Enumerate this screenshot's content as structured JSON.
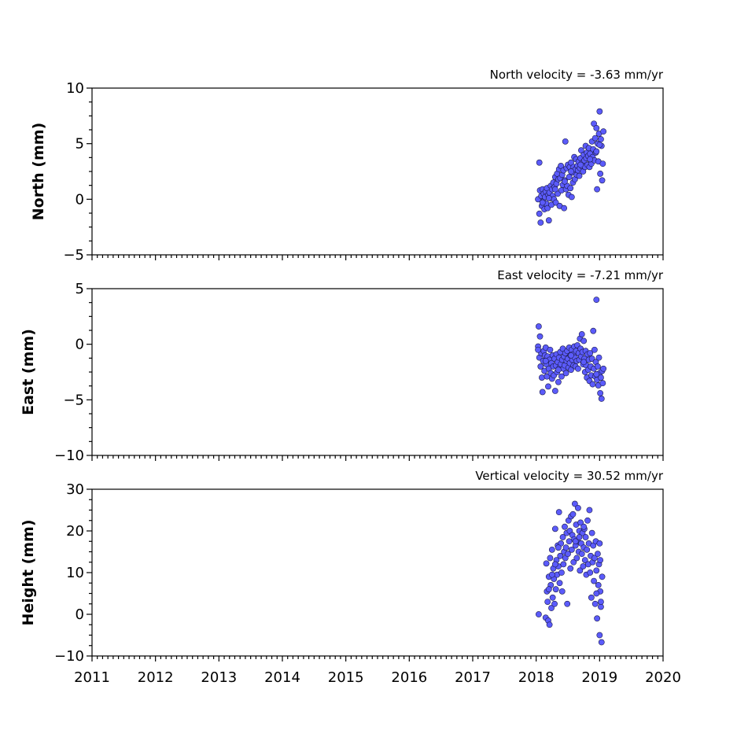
{
  "style": {
    "marker_color": "#5b5bfa",
    "marker_edge": "#1a1a4a"
  },
  "chart_data": [
    {
      "type": "scatter",
      "title": "North velocity = -3.63 mm/yr",
      "xlabel": "",
      "ylabel": "North (mm)",
      "xlim": [
        2011,
        2020
      ],
      "ylim": [
        -5,
        10
      ],
      "yticks": [
        -5,
        0,
        5,
        10
      ],
      "yticklabels": [
        "−5",
        "0",
        "5",
        "10"
      ],
      "x": [
        2018.03,
        2018.05,
        2018.06,
        2018.07,
        2018.08,
        2018.09,
        2018.1,
        2018.11,
        2018.12,
        2018.13,
        2018.14,
        2018.15,
        2018.16,
        2018.17,
        2018.18,
        2018.19,
        2018.2,
        2018.21,
        2018.22,
        2018.23,
        2018.24,
        2018.25,
        2018.26,
        2018.27,
        2018.28,
        2018.29,
        2018.3,
        2018.31,
        2018.32,
        2018.33,
        2018.34,
        2018.35,
        2018.36,
        2018.37,
        2018.38,
        2018.39,
        2018.4,
        2018.41,
        2018.42,
        2018.43,
        2018.44,
        2018.45,
        2018.46,
        2018.47,
        2018.48,
        2018.49,
        2018.5,
        2018.51,
        2018.52,
        2018.53,
        2018.54,
        2018.55,
        2018.56,
        2018.57,
        2018.58,
        2018.59,
        2018.6,
        2018.61,
        2018.62,
        2018.63,
        2018.64,
        2018.65,
        2018.66,
        2018.67,
        2018.68,
        2018.69,
        2018.7,
        2018.71,
        2018.72,
        2018.73,
        2018.74,
        2018.75,
        2018.76,
        2018.77,
        2018.78,
        2018.79,
        2018.8,
        2018.81,
        2018.82,
        2018.83,
        2018.84,
        2018.85,
        2018.86,
        2018.87,
        2018.88,
        2018.89,
        2018.9,
        2018.91,
        2018.92,
        2018.93,
        2018.94,
        2018.95,
        2018.96,
        2018.97,
        2018.98,
        2018.99,
        2019.0,
        2019.01,
        2019.02,
        2019.03,
        2019.04,
        2019.05,
        2019.06,
        2018.05,
        2018.1,
        2018.2,
        2018.3,
        2018.45,
        2018.55,
        2018.7,
        2018.85,
        2018.95,
        2019.0
      ],
      "y": [
        0.0,
        -1.3,
        0.8,
        -2.1,
        0.3,
        -0.6,
        0.9,
        -0.2,
        0.5,
        -0.9,
        0.2,
        0.7,
        -0.4,
        1.0,
        -0.8,
        0.4,
        -1.9,
        0.6,
        0.1,
        1.2,
        -0.5,
        0.9,
        0.3,
        1.5,
        0.0,
        1.1,
        2.0,
        -0.3,
        1.4,
        2.3,
        0.5,
        1.8,
        2.7,
        -0.6,
        1.9,
        3.0,
        0.8,
        2.2,
        1.3,
        2.6,
        -0.8,
        1.7,
        5.2,
        0.9,
        2.8,
        1.2,
        3.1,
        0.4,
        2.0,
        2.9,
        1.0,
        3.3,
        0.2,
        2.4,
        1.5,
        2.9,
        3.8,
        1.8,
        2.7,
        3.6,
        2.2,
        3.0,
        2.6,
        3.4,
        2.1,
        2.8,
        3.7,
        4.4,
        3.0,
        3.3,
        2.5,
        4.0,
        3.5,
        2.9,
        4.8,
        3.7,
        4.2,
        3.1,
        3.9,
        4.6,
        2.9,
        4.1,
        3.5,
        3.2,
        5.2,
        3.8,
        4.5,
        6.8,
        3.5,
        5.5,
        4.2,
        6.4,
        0.9,
        5.0,
        3.4,
        5.9,
        7.9,
        2.3,
        5.4,
        4.8,
        1.7,
        3.2,
        6.1,
        3.3,
        -0.3,
        0.1,
        0.9,
        1.6,
        2.5,
        3.1,
        3.6,
        4.3,
        4.9
      ],
      "annotation": "North velocity = -3.63 mm/yr"
    },
    {
      "type": "scatter",
      "title": "East velocity = -7.21 mm/yr",
      "xlabel": "",
      "ylabel": "East (mm)",
      "xlim": [
        2011,
        2020
      ],
      "ylim": [
        -10,
        5
      ],
      "yticks": [
        -10,
        -5,
        0,
        5
      ],
      "yticklabels": [
        "−10",
        "−5",
        "0",
        "5"
      ],
      "x": [
        2018.03,
        2018.04,
        2018.05,
        2018.06,
        2018.07,
        2018.08,
        2018.09,
        2018.1,
        2018.11,
        2018.12,
        2018.13,
        2018.14,
        2018.15,
        2018.16,
        2018.17,
        2018.18,
        2018.19,
        2018.2,
        2018.21,
        2018.22,
        2018.23,
        2018.24,
        2018.25,
        2018.26,
        2018.27,
        2018.28,
        2018.29,
        2018.3,
        2018.31,
        2018.32,
        2018.33,
        2018.34,
        2018.35,
        2018.36,
        2018.37,
        2018.38,
        2018.39,
        2018.4,
        2018.41,
        2018.42,
        2018.43,
        2018.44,
        2018.45,
        2018.46,
        2018.47,
        2018.48,
        2018.49,
        2018.5,
        2018.51,
        2018.52,
        2018.53,
        2018.54,
        2018.55,
        2018.56,
        2018.57,
        2018.58,
        2018.59,
        2018.6,
        2018.61,
        2018.62,
        2018.63,
        2018.64,
        2018.65,
        2018.66,
        2018.67,
        2018.68,
        2018.69,
        2018.7,
        2018.71,
        2018.72,
        2018.73,
        2018.74,
        2018.75,
        2018.76,
        2018.77,
        2018.78,
        2018.79,
        2018.8,
        2018.81,
        2018.82,
        2018.83,
        2018.84,
        2018.85,
        2018.86,
        2018.87,
        2018.88,
        2018.89,
        2018.9,
        2018.91,
        2018.92,
        2018.93,
        2018.94,
        2018.95,
        2018.96,
        2018.97,
        2018.98,
        2018.99,
        2019.0,
        2019.01,
        2019.02,
        2019.03,
        2019.04,
        2019.05,
        2019.06,
        2018.03,
        2018.15,
        2018.35,
        2018.55,
        2018.75,
        2018.95
      ],
      "y": [
        -0.2,
        1.6,
        -1.2,
        0.7,
        -2.0,
        -0.8,
        -3.0,
        -4.3,
        -1.5,
        -0.6,
        -2.4,
        -1.0,
        -0.3,
        -1.8,
        -2.9,
        -1.1,
        -3.8,
        -2.2,
        -1.4,
        -0.5,
        -2.6,
        -1.7,
        -3.1,
        -1.0,
        -2.0,
        -2.8,
        -1.3,
        -4.2,
        -1.9,
        -0.9,
        -2.5,
        -1.6,
        -3.4,
        -1.2,
        -2.1,
        -0.7,
        -1.8,
        -2.9,
        -1.4,
        -0.4,
        -2.2,
        -1.1,
        -1.9,
        -0.8,
        -2.6,
        -1.5,
        -0.6,
        -1.3,
        -2.1,
        -0.3,
        -1.7,
        -1.0,
        -2.3,
        -0.5,
        -1.4,
        -0.9,
        -1.9,
        -0.2,
        -1.2,
        -2.0,
        -0.6,
        -1.5,
        -0.1,
        -2.2,
        -0.8,
        -1.4,
        0.5,
        -0.4,
        -1.1,
        0.9,
        -0.7,
        -1.8,
        0.3,
        -1.3,
        -2.5,
        -0.6,
        -1.9,
        -3.0,
        -0.9,
        -2.3,
        -1.4,
        -3.3,
        -0.8,
        -2.0,
        -2.8,
        -1.3,
        -3.6,
        1.2,
        -2.2,
        -0.5,
        -2.9,
        -1.6,
        4.0,
        -3.2,
        -2.0,
        -3.7,
        -1.2,
        -2.6,
        -4.4,
        -3.0,
        -4.9,
        -2.4,
        -3.5,
        -2.2,
        -0.5,
        -1.5,
        -2.3,
        -1.0,
        -1.6,
        -2.7
      ]
    },
    {
      "type": "scatter",
      "title": "Vertical velocity = 30.52 mm/yr",
      "xlabel": "",
      "ylabel": "Height (mm)",
      "xlim": [
        2011,
        2020
      ],
      "ylim": [
        -10,
        30
      ],
      "yticks": [
        -10,
        0,
        10,
        20,
        30
      ],
      "yticklabels": [
        "−10",
        "0",
        "10",
        "20",
        "30"
      ],
      "xticks": [
        2011,
        2012,
        2013,
        2014,
        2015,
        2016,
        2017,
        2018,
        2019,
        2020
      ],
      "xticklabels": [
        "2011",
        "2012",
        "2013",
        "2014",
        "2015",
        "2016",
        "2017",
        "2018",
        "2019",
        "2020"
      ],
      "x": [
        2018.04,
        2018.15,
        2018.16,
        2018.17,
        2018.18,
        2018.19,
        2018.2,
        2018.21,
        2018.22,
        2018.23,
        2018.24,
        2018.25,
        2018.26,
        2018.27,
        2018.28,
        2018.29,
        2018.3,
        2018.31,
        2018.32,
        2018.33,
        2018.34,
        2018.35,
        2018.36,
        2018.37,
        2018.38,
        2018.39,
        2018.4,
        2018.41,
        2018.42,
        2018.43,
        2018.44,
        2018.45,
        2018.46,
        2018.47,
        2018.48,
        2018.49,
        2018.5,
        2018.51,
        2018.52,
        2018.53,
        2018.54,
        2018.55,
        2018.56,
        2018.57,
        2018.58,
        2018.59,
        2018.6,
        2018.61,
        2018.62,
        2018.63,
        2018.64,
        2018.65,
        2018.66,
        2018.67,
        2018.68,
        2018.69,
        2018.7,
        2018.71,
        2018.72,
        2018.73,
        2018.74,
        2018.75,
        2018.76,
        2018.77,
        2018.78,
        2018.79,
        2018.8,
        2018.81,
        2018.82,
        2018.83,
        2018.84,
        2018.85,
        2018.86,
        2018.87,
        2018.88,
        2018.89,
        2018.9,
        2018.91,
        2018.92,
        2018.93,
        2018.94,
        2018.95,
        2018.96,
        2018.97,
        2018.98,
        2018.99,
        2019.0,
        2019.01,
        2019.02,
        2019.03,
        2019.04,
        2018.2,
        2018.25,
        2018.3,
        2018.35,
        2018.62,
        2018.68,
        2018.75,
        2018.95,
        2019.0,
        2019.01,
        2019.02
      ],
      "y": [
        0.0,
        -0.8,
        12.2,
        5.5,
        3.0,
        -1.5,
        9.0,
        -2.5,
        13.5,
        7.0,
        1.5,
        15.5,
        4.0,
        11.0,
        8.5,
        2.5,
        20.5,
        6.0,
        13.0,
        9.5,
        16.5,
        11.5,
        24.5,
        7.5,
        14.0,
        17.0,
        10.0,
        5.5,
        18.5,
        12.0,
        15.0,
        21.0,
        13.5,
        16.0,
        19.5,
        2.5,
        14.5,
        22.5,
        17.5,
        20.0,
        11.0,
        23.5,
        15.5,
        19.0,
        24.0,
        12.5,
        18.0,
        26.5,
        16.5,
        21.5,
        13.5,
        17.5,
        25.5,
        15.0,
        20.0,
        10.5,
        22.0,
        17.0,
        14.5,
        19.5,
        11.5,
        16.0,
        20.5,
        13.0,
        18.5,
        9.5,
        15.5,
        22.5,
        12.0,
        17.0,
        25.0,
        10.0,
        14.0,
        4.0,
        19.5,
        12.5,
        16.5,
        8.0,
        13.5,
        2.5,
        17.5,
        10.5,
        -1.0,
        14.5,
        7.0,
        12.0,
        -5.0,
        5.5,
        1.8,
        -6.7,
        9.0,
        6.0,
        9.5,
        12.0,
        16.0,
        17.5,
        18.5,
        21.0,
        5.0,
        17.0,
        13.0,
        3.0
      ]
    }
  ]
}
